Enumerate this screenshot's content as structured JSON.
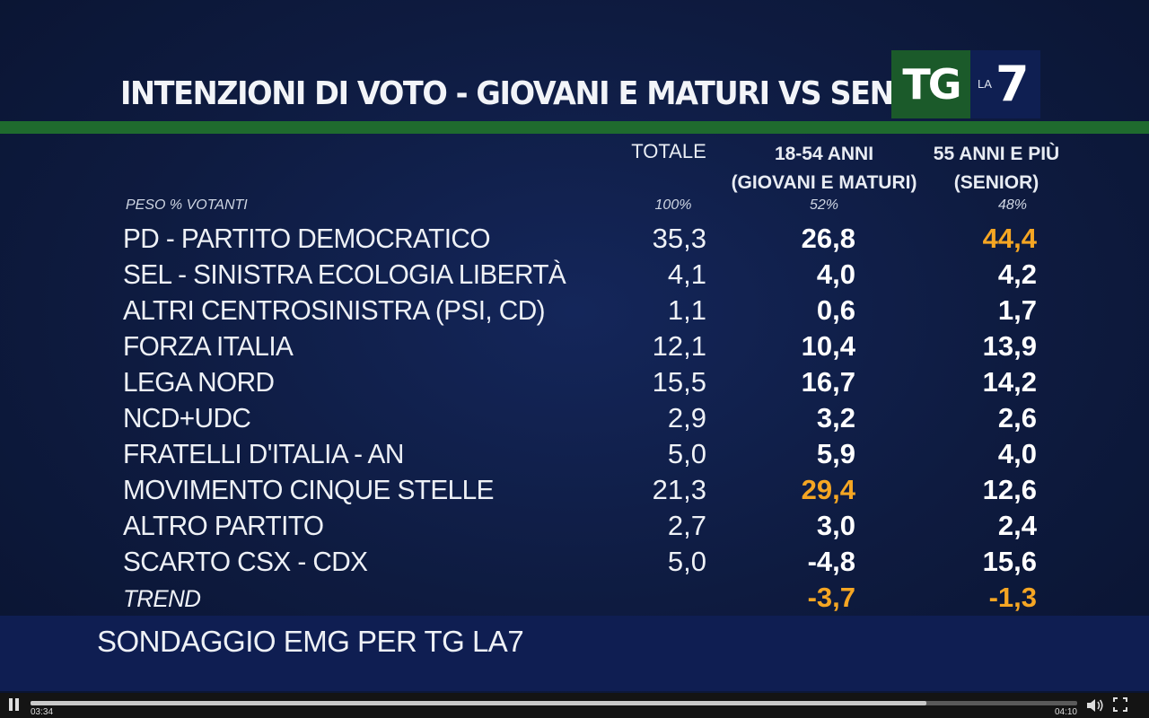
{
  "title": "INTENZIONI DI VOTO - GIOVANI E MATURI VS SENIOR",
  "logo": {
    "tg": "TG",
    "la": "LA",
    "seven": "7"
  },
  "columns": {
    "totale": "TOTALE",
    "c2_line1": "18-54 ANNI",
    "c2_line2": "(GIOVANI E MATURI)",
    "c3_line1": "55 ANNI E PIÙ",
    "c3_line2": "(SENIOR)"
  },
  "weights": {
    "label": "PESO % VOTANTI",
    "totale": "100%",
    "c2": "52%",
    "c3": "48%"
  },
  "rows": [
    {
      "party": "PD - PARTITO DEMOCRATICO",
      "totale": "35,3",
      "c2": "26,8",
      "c3": "44,4"
    },
    {
      "party": "SEL - SINISTRA ECOLOGIA LIBERTÀ",
      "totale": "4,1",
      "c2": "4,0",
      "c3": "4,2"
    },
    {
      "party": "ALTRI CENTROSINISTRA (PSI, CD)",
      "totale": "1,1",
      "c2": "0,6",
      "c3": "1,7"
    },
    {
      "party": "FORZA ITALIA",
      "totale": "12,1",
      "c2": "10,4",
      "c3": "13,9"
    },
    {
      "party": "LEGA NORD",
      "totale": "15,5",
      "c2": "16,7",
      "c3": "14,2"
    },
    {
      "party": "NCD+UDC",
      "totale": "2,9",
      "c2": "3,2",
      "c3": "2,6"
    },
    {
      "party": "FRATELLI D'ITALIA - AN",
      "totale": "5,0",
      "c2": "5,9",
      "c3": "4,0"
    },
    {
      "party": "MOVIMENTO CINQUE STELLE",
      "totale": "21,3",
      "c2": "29,4",
      "c3": "12,6"
    },
    {
      "party": "ALTRO PARTITO",
      "totale": "2,7",
      "c2": "3,0",
      "c3": "2,4"
    },
    {
      "party": "SCARTO CSX - CDX",
      "totale": "5,0",
      "c2": "-4,8",
      "c3": "15,6"
    },
    {
      "party": "TREND",
      "totale": "",
      "c2": "-3,7",
      "c3": "-1,3"
    }
  ],
  "highlight_color": "#f5a623",
  "source": "SONDAGGIO EMG PER TG LA7",
  "player": {
    "current_time": "03:34",
    "duration": "04:10",
    "progress": 0.856
  }
}
